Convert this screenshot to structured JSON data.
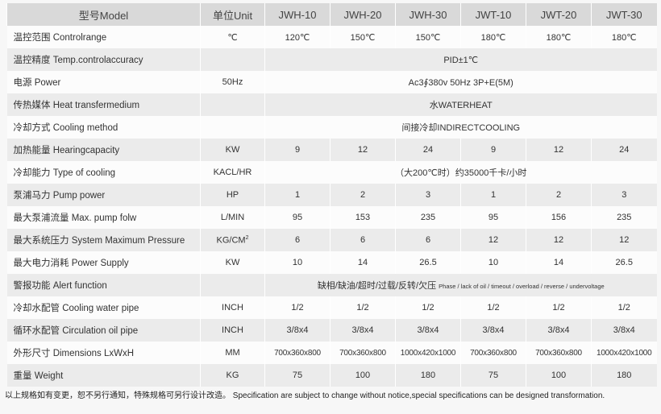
{
  "header": {
    "model": "型号Model",
    "unit": "单位Unit",
    "models": [
      "JWH-10",
      "JWH-20",
      "JWH-30",
      "JWT-10",
      "JWT-20",
      "JWT-30"
    ]
  },
  "rows": [
    {
      "label": "温控范围 Controlrange",
      "unit": "℃",
      "values": [
        "120℃",
        "150℃",
        "150℃",
        "180℃",
        "180℃",
        "180℃"
      ]
    },
    {
      "label": "温控精度 Temp.controlaccuracy",
      "unit": "",
      "span": "PID±1℃"
    },
    {
      "label": "电源 Power",
      "unit": "50Hz",
      "span": "Ac3∮380v 50Hz 3P+E(5M)"
    },
    {
      "label": "传热媒体 Heat transfermedium",
      "unit": "",
      "span": "水WATERHEAT"
    },
    {
      "label": "冷却方式 Cooling method",
      "unit": "",
      "span": "间接冷却INDIRECTCOOLING"
    },
    {
      "label": "加热能量 Hearingcapacity",
      "unit": "KW",
      "values": [
        "9",
        "12",
        "24",
        "9",
        "12",
        "24"
      ]
    },
    {
      "label": "冷却能力 Type of cooling",
      "unit": "KACL/HR",
      "span": "（大200℃时）约35000千卡/小时"
    },
    {
      "label": "泵浦马力 Pump power",
      "unit": "HP",
      "values": [
        "1",
        "2",
        "3",
        "1",
        "2",
        "3"
      ]
    },
    {
      "label": "最大泵浦流量 Max. pump folw",
      "unit": "L/MIN",
      "values": [
        "95",
        "153",
        "235",
        "95",
        "156",
        "235"
      ]
    },
    {
      "label": "最大系统压力 System Maximum Pressure",
      "unit": "KG/CM",
      "unit_sup": "2",
      "values": [
        "6",
        "6",
        "6",
        "12",
        "12",
        "12"
      ]
    },
    {
      "label": "最大电力消耗 Power Supply",
      "unit": "KW",
      "values": [
        "10",
        "14",
        "26.5",
        "10",
        "14",
        "26.5"
      ]
    },
    {
      "label": "警报功能 Alert function",
      "unit": "",
      "span": "缺相/缺油/超时/过载/反转/欠压",
      "span_small": "Phase / lack of oil / timeout / overload / reverse / undervoltage"
    },
    {
      "label": "冷却水配管 Cooling water pipe",
      "unit": "INCH",
      "values": [
        "1/2",
        "1/2",
        "1/2",
        "1/2",
        "1/2",
        "1/2"
      ]
    },
    {
      "label": "循环水配管 Circulation oil pipe",
      "unit": "INCH",
      "values": [
        "3/8x4",
        "3/8x4",
        "3/8x4",
        "3/8x4",
        "3/8x4",
        "3/8x4"
      ]
    },
    {
      "label": "外形尺寸 Dimensions LxWxH",
      "unit": "MM",
      "values": [
        "700x360x800",
        "700x360x800",
        "1000x420x1000",
        "700x360x800",
        "700x360x800",
        "1000x420x1000"
      ]
    },
    {
      "label": "重量 Weight",
      "unit": "KG",
      "values": [
        "75",
        "100",
        "180",
        "75",
        "100",
        "180"
      ]
    }
  ],
  "footer": "以上规格如有变更，恕不另行通知，特殊规格可另行设计改造。 Specification are subject to change without notice,special specifications can be designed transformation."
}
